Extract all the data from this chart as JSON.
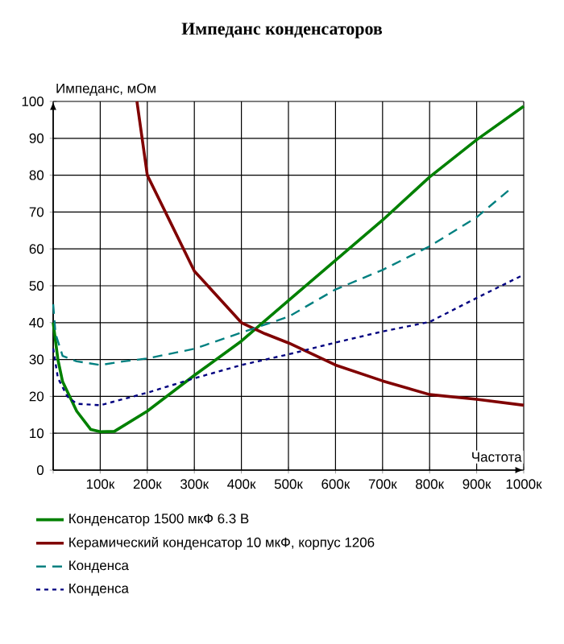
{
  "chart_data": {
    "type": "line",
    "title": "Импеданс конденсаторов",
    "xlabel": "Частота",
    "ylabel": "Импеданс, мОм",
    "xlim": [
      0,
      1000
    ],
    "ylim": [
      0,
      100
    ],
    "xticks": [
      {
        "value": 0,
        "label": null
      },
      {
        "value": 100,
        "label": "100к"
      },
      {
        "value": 200,
        "label": "200к"
      },
      {
        "value": 300,
        "label": "300к"
      },
      {
        "value": 400,
        "label": "400к"
      },
      {
        "value": 500,
        "label": "500к"
      },
      {
        "value": 600,
        "label": "600к"
      },
      {
        "value": 700,
        "label": "700к"
      },
      {
        "value": 800,
        "label": "800к"
      },
      {
        "value": 900,
        "label": "900к"
      },
      {
        "value": 1000,
        "label": "1000к"
      }
    ],
    "yticks": [
      0,
      10,
      20,
      30,
      40,
      50,
      60,
      70,
      80,
      90,
      100
    ],
    "grid": true,
    "legend": "bottom",
    "marker": "none",
    "series": [
      {
        "name": "Конденсатор 1500 мкФ 6.3 В",
        "color": "#008000",
        "line_style": "solid",
        "x": [
          0,
          10,
          20,
          50,
          80,
          100,
          130,
          200,
          300,
          400,
          500,
          600,
          700,
          800,
          900,
          1000
        ],
        "values": [
          40,
          30,
          24,
          16,
          11,
          10.4,
          10.5,
          16,
          25.7,
          35,
          46,
          56.9,
          67.8,
          79.5,
          89.6,
          98.7
        ]
      },
      {
        "name": "Керамический конденсатор 10 мкФ, корпус 1206",
        "color": "#800000",
        "line_style": "solid",
        "x": [
          178,
          200,
          250,
          300,
          350,
          400,
          450,
          500,
          600,
          700,
          800,
          900,
          1000
        ],
        "values": [
          100,
          80,
          67,
          54,
          47,
          40,
          37,
          34.5,
          28.5,
          24.2,
          20.5,
          19.2,
          17.6
        ]
      },
      {
        "name": "Конденса",
        "color": "#008080",
        "line_style": "dashed",
        "x": [
          0,
          5,
          20,
          50,
          100,
          150,
          200,
          300,
          400,
          500,
          600,
          700,
          800,
          900,
          975
        ],
        "values": [
          45,
          37,
          31,
          29.5,
          28.5,
          29.5,
          30.3,
          32.9,
          37.3,
          41.6,
          49,
          54.3,
          60.7,
          68.6,
          76.6
        ]
      },
      {
        "name": "Конденса",
        "color": "#000080",
        "line_style": "dotted",
        "x": [
          0,
          10,
          30,
          50,
          100,
          200,
          300,
          400,
          500,
          600,
          700,
          800,
          900,
          1000
        ],
        "values": [
          33,
          25,
          20,
          18,
          17.6,
          21,
          24.9,
          28.5,
          31.4,
          34.6,
          37.6,
          40.2,
          46.7,
          53
        ]
      }
    ]
  }
}
